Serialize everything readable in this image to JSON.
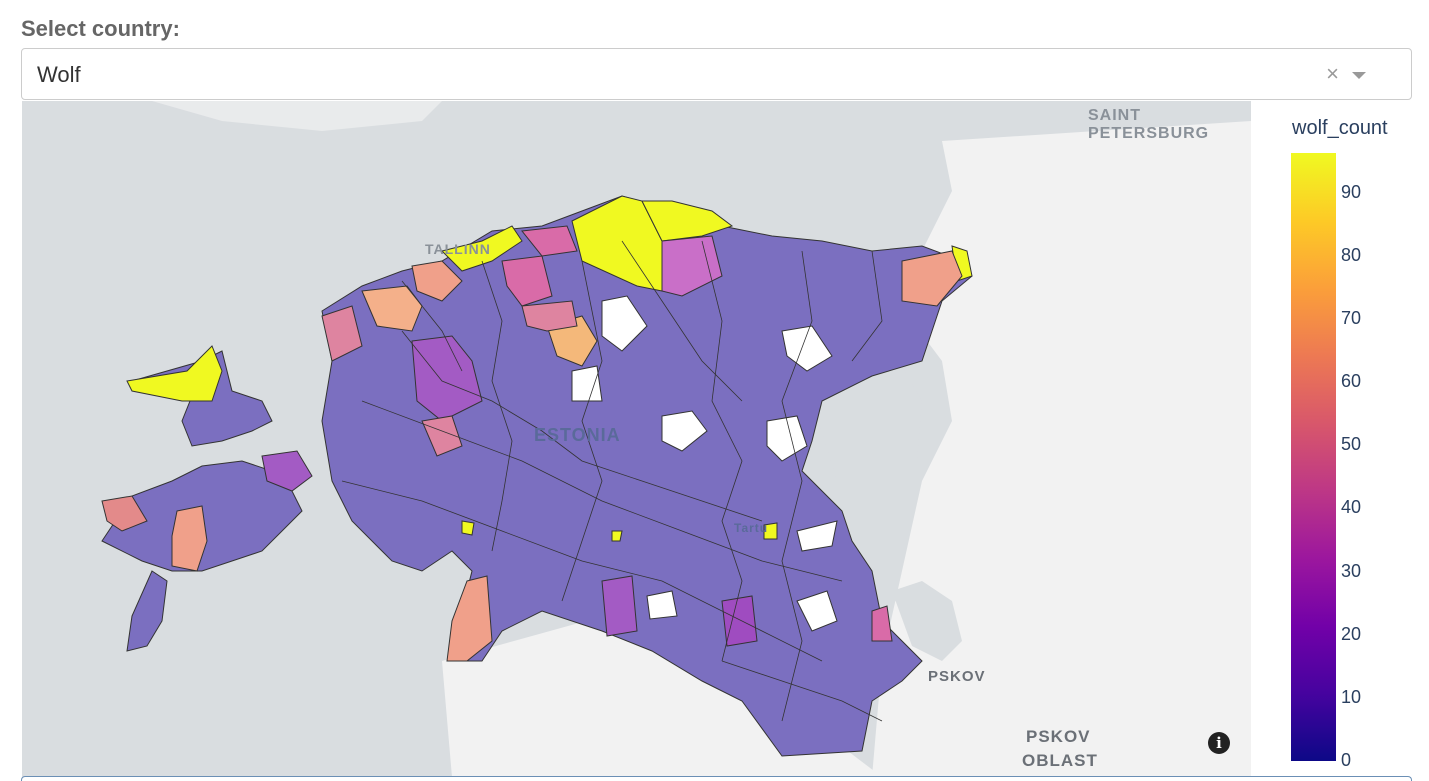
{
  "selector": {
    "label": "Select country:",
    "value": "Wolf",
    "clear_glyph": "×"
  },
  "map": {
    "labels": {
      "saint_petersburg": "SAINT PETERSBURG",
      "tallinn": "TALLINN",
      "estonia": "ESTONIA",
      "tartu": "Tartu",
      "pskov": "PSKOV",
      "pskov_oblast_1": "PSKOV",
      "pskov_oblast_2": "OBLAST"
    },
    "info_glyph": "i"
  },
  "legend": {
    "title": "wolf_count",
    "ticks": [
      "90",
      "80",
      "70",
      "60",
      "50",
      "40",
      "30",
      "20",
      "10",
      "0"
    ],
    "colorscale": [
      "#0d0887",
      "#46039f",
      "#7201a8",
      "#9c179e",
      "#bd3786",
      "#d8576b",
      "#ed7953",
      "#fb9f3a",
      "#fdca26",
      "#f0f921"
    ],
    "range": [
      0,
      96
    ]
  },
  "colors": {
    "land": "#f2f2f2",
    "water": "#d9dde0",
    "base_region": "#7b6fc0",
    "no_data": "#ffffff"
  }
}
